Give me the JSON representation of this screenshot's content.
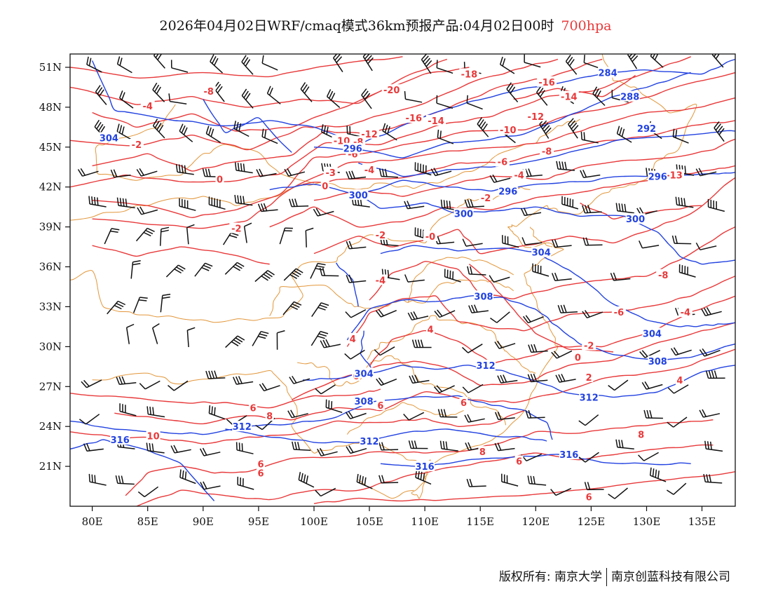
{
  "title": {
    "main": "2026年04月02日WRF/cmaq模式36km预报产品:04月02日00时",
    "level": "700hpa"
  },
  "colors": {
    "temperature": "#e8393a",
    "height": "#2242e0",
    "border": "#e0902f",
    "wind": "#111111"
  },
  "chart_data": {
    "type": "map",
    "region": {
      "lon": [
        78,
        138
      ],
      "lat": [
        18,
        52
      ]
    },
    "x_ticks": [
      "80E",
      "85E",
      "90E",
      "95E",
      "100E",
      "105E",
      "110E",
      "115E",
      "120E",
      "125E",
      "130E",
      "135E"
    ],
    "y_ticks": [
      "51N",
      "48N",
      "45N",
      "42N",
      "39N",
      "36N",
      "33N",
      "30N",
      "27N",
      "24N",
      "21N"
    ],
    "temperature_labels": [
      {
        "text": "-18",
        "lon": 114,
        "lat": 50.5
      },
      {
        "text": "-16",
        "lon": 121,
        "lat": 49.9
      },
      {
        "text": "-20",
        "lon": 107,
        "lat": 49.3
      },
      {
        "text": "-14",
        "lon": 123,
        "lat": 48.8
      },
      {
        "text": "-8",
        "lon": 90.5,
        "lat": 49.2
      },
      {
        "text": "-4",
        "lon": 85,
        "lat": 48.1
      },
      {
        "text": "-12",
        "lon": 120,
        "lat": 47.3
      },
      {
        "text": "-16",
        "lon": 109,
        "lat": 47.2
      },
      {
        "text": "-14",
        "lon": 111,
        "lat": 47.0
      },
      {
        "text": "-10",
        "lon": 117.5,
        "lat": 46.3
      },
      {
        "text": "-12",
        "lon": 105,
        "lat": 46.0
      },
      {
        "text": "-10",
        "lon": 102.5,
        "lat": 45.5
      },
      {
        "text": "-8",
        "lon": 104,
        "lat": 45.4
      },
      {
        "text": "-8",
        "lon": 121,
        "lat": 44.7
      },
      {
        "text": "-2",
        "lon": 84,
        "lat": 45.2
      },
      {
        "text": "-6",
        "lon": 103.5,
        "lat": 44.5
      },
      {
        "text": "-6",
        "lon": 117,
        "lat": 43.9
      },
      {
        "text": "-4",
        "lon": 105,
        "lat": 43.3
      },
      {
        "text": "-3",
        "lon": 101.5,
        "lat": 43.1
      },
      {
        "text": "-4",
        "lon": 118.5,
        "lat": 42.9
      },
      {
        "text": "-13",
        "lon": 132.5,
        "lat": 42.9
      },
      {
        "text": "0",
        "lon": 91.5,
        "lat": 42.6
      },
      {
        "text": "0",
        "lon": 101,
        "lat": 42.1
      },
      {
        "text": "-2",
        "lon": 115.5,
        "lat": 41.2
      },
      {
        "text": "-2",
        "lon": 93,
        "lat": 38.9
      },
      {
        "text": "-2",
        "lon": 106,
        "lat": 38.4
      },
      {
        "text": "-0",
        "lon": 110.5,
        "lat": 38.3
      },
      {
        "text": "-8",
        "lon": 131.5,
        "lat": 35.4
      },
      {
        "text": "-4",
        "lon": 106,
        "lat": 35.0
      },
      {
        "text": "-6",
        "lon": 127.5,
        "lat": 32.6
      },
      {
        "text": "-4",
        "lon": 133.5,
        "lat": 32.6
      },
      {
        "text": "4",
        "lon": 110.5,
        "lat": 31.3
      },
      {
        "text": "-2",
        "lon": 124.8,
        "lat": 30.1
      },
      {
        "text": "4",
        "lon": 103.5,
        "lat": 30.6
      },
      {
        "text": "0",
        "lon": 123.8,
        "lat": 29.2
      },
      {
        "text": "6",
        "lon": 103.8,
        "lat": 27.8
      },
      {
        "text": "2",
        "lon": 124.8,
        "lat": 27.7
      },
      {
        "text": "4",
        "lon": 133,
        "lat": 27.5
      },
      {
        "text": "6",
        "lon": 94.5,
        "lat": 25.4
      },
      {
        "text": "8",
        "lon": 96,
        "lat": 24.8
      },
      {
        "text": "6",
        "lon": 106,
        "lat": 25.6
      },
      {
        "text": "6",
        "lon": 113.5,
        "lat": 25.8
      },
      {
        "text": "10",
        "lon": 85.5,
        "lat": 23.3
      },
      {
        "text": "8",
        "lon": 129.5,
        "lat": 23.4
      },
      {
        "text": "8",
        "lon": 115.2,
        "lat": 22.1
      },
      {
        "text": "6",
        "lon": 118.5,
        "lat": 21.4
      },
      {
        "text": "6",
        "lon": 95.2,
        "lat": 21.2
      },
      {
        "text": "6",
        "lon": 95.2,
        "lat": 20.5
      },
      {
        "text": "6",
        "lon": 124.8,
        "lat": 18.7
      }
    ],
    "height_labels": [
      {
        "text": "284",
        "lon": 126.5,
        "lat": 50.6
      },
      {
        "text": "288",
        "lon": 128.5,
        "lat": 48.8
      },
      {
        "text": "292",
        "lon": 130,
        "lat": 46.4
      },
      {
        "text": "304",
        "lon": 81.5,
        "lat": 45.7
      },
      {
        "text": "296",
        "lon": 103.5,
        "lat": 44.9
      },
      {
        "text": "296",
        "lon": 131,
        "lat": 42.8
      },
      {
        "text": "300",
        "lon": 104,
        "lat": 41.4
      },
      {
        "text": "296",
        "lon": 117.5,
        "lat": 41.7
      },
      {
        "text": "300",
        "lon": 113.5,
        "lat": 40.0
      },
      {
        "text": "300",
        "lon": 129,
        "lat": 39.6
      },
      {
        "text": "304",
        "lon": 120.5,
        "lat": 37.1
      },
      {
        "text": "308",
        "lon": 115.3,
        "lat": 33.8
      },
      {
        "text": "304",
        "lon": 130.5,
        "lat": 31.0
      },
      {
        "text": "308",
        "lon": 131,
        "lat": 28.9
      },
      {
        "text": "312",
        "lon": 115.5,
        "lat": 28.6
      },
      {
        "text": "304",
        "lon": 104.5,
        "lat": 28.0
      },
      {
        "text": "312",
        "lon": 124.8,
        "lat": 26.2
      },
      {
        "text": "308",
        "lon": 104.5,
        "lat": 25.9
      },
      {
        "text": "312",
        "lon": 93.5,
        "lat": 24.0
      },
      {
        "text": "312",
        "lon": 105,
        "lat": 22.9
      },
      {
        "text": "316",
        "lon": 82.5,
        "lat": 23.0
      },
      {
        "text": "316",
        "lon": 123,
        "lat": 21.9
      },
      {
        "text": "316",
        "lon": 110,
        "lat": 21.0
      }
    ]
  },
  "footer": {
    "copyright": "版权所有: 南京大学",
    "company": "南京创蓝科技有限公司"
  }
}
